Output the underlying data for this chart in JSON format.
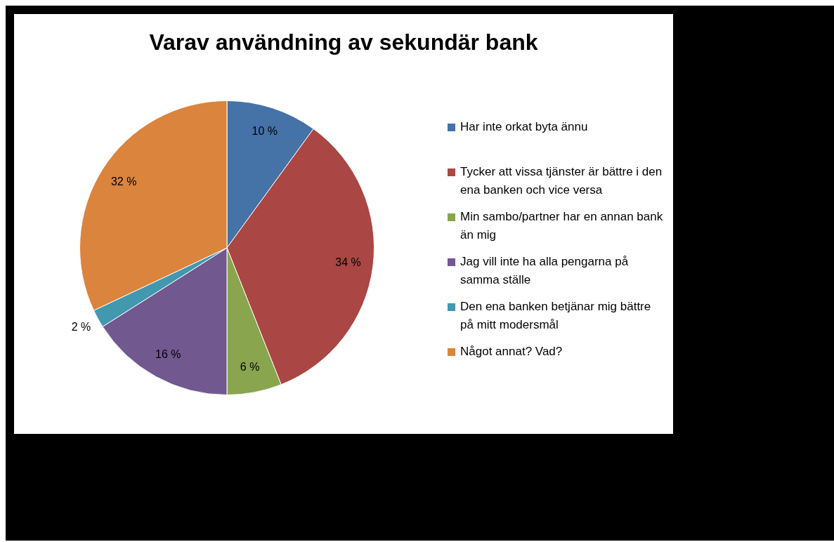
{
  "chart_data": {
    "type": "pie",
    "title": "Varav användning av sekundär bank",
    "categories": [
      "Har inte orkat byta ännu",
      "Tycker att vissa tjänster är bättre i den ena banken och vice versa",
      "Min sambo/partner har en annan bank än mig",
      "Jag vill inte ha alla pengarna på samma ställe",
      "Den ena banken betjänar mig bättre på mitt modersmål",
      "Något annat? Vad?"
    ],
    "values": [
      10,
      34,
      6,
      16,
      2,
      32
    ],
    "value_labels": [
      "10 %",
      "34 %",
      "6 %",
      "16 %",
      "2 %",
      "32 %"
    ],
    "colors": [
      "#4572a7",
      "#aa4643",
      "#89a54e",
      "#71588f",
      "#4198af",
      "#db843d"
    ],
    "legend": "right"
  }
}
